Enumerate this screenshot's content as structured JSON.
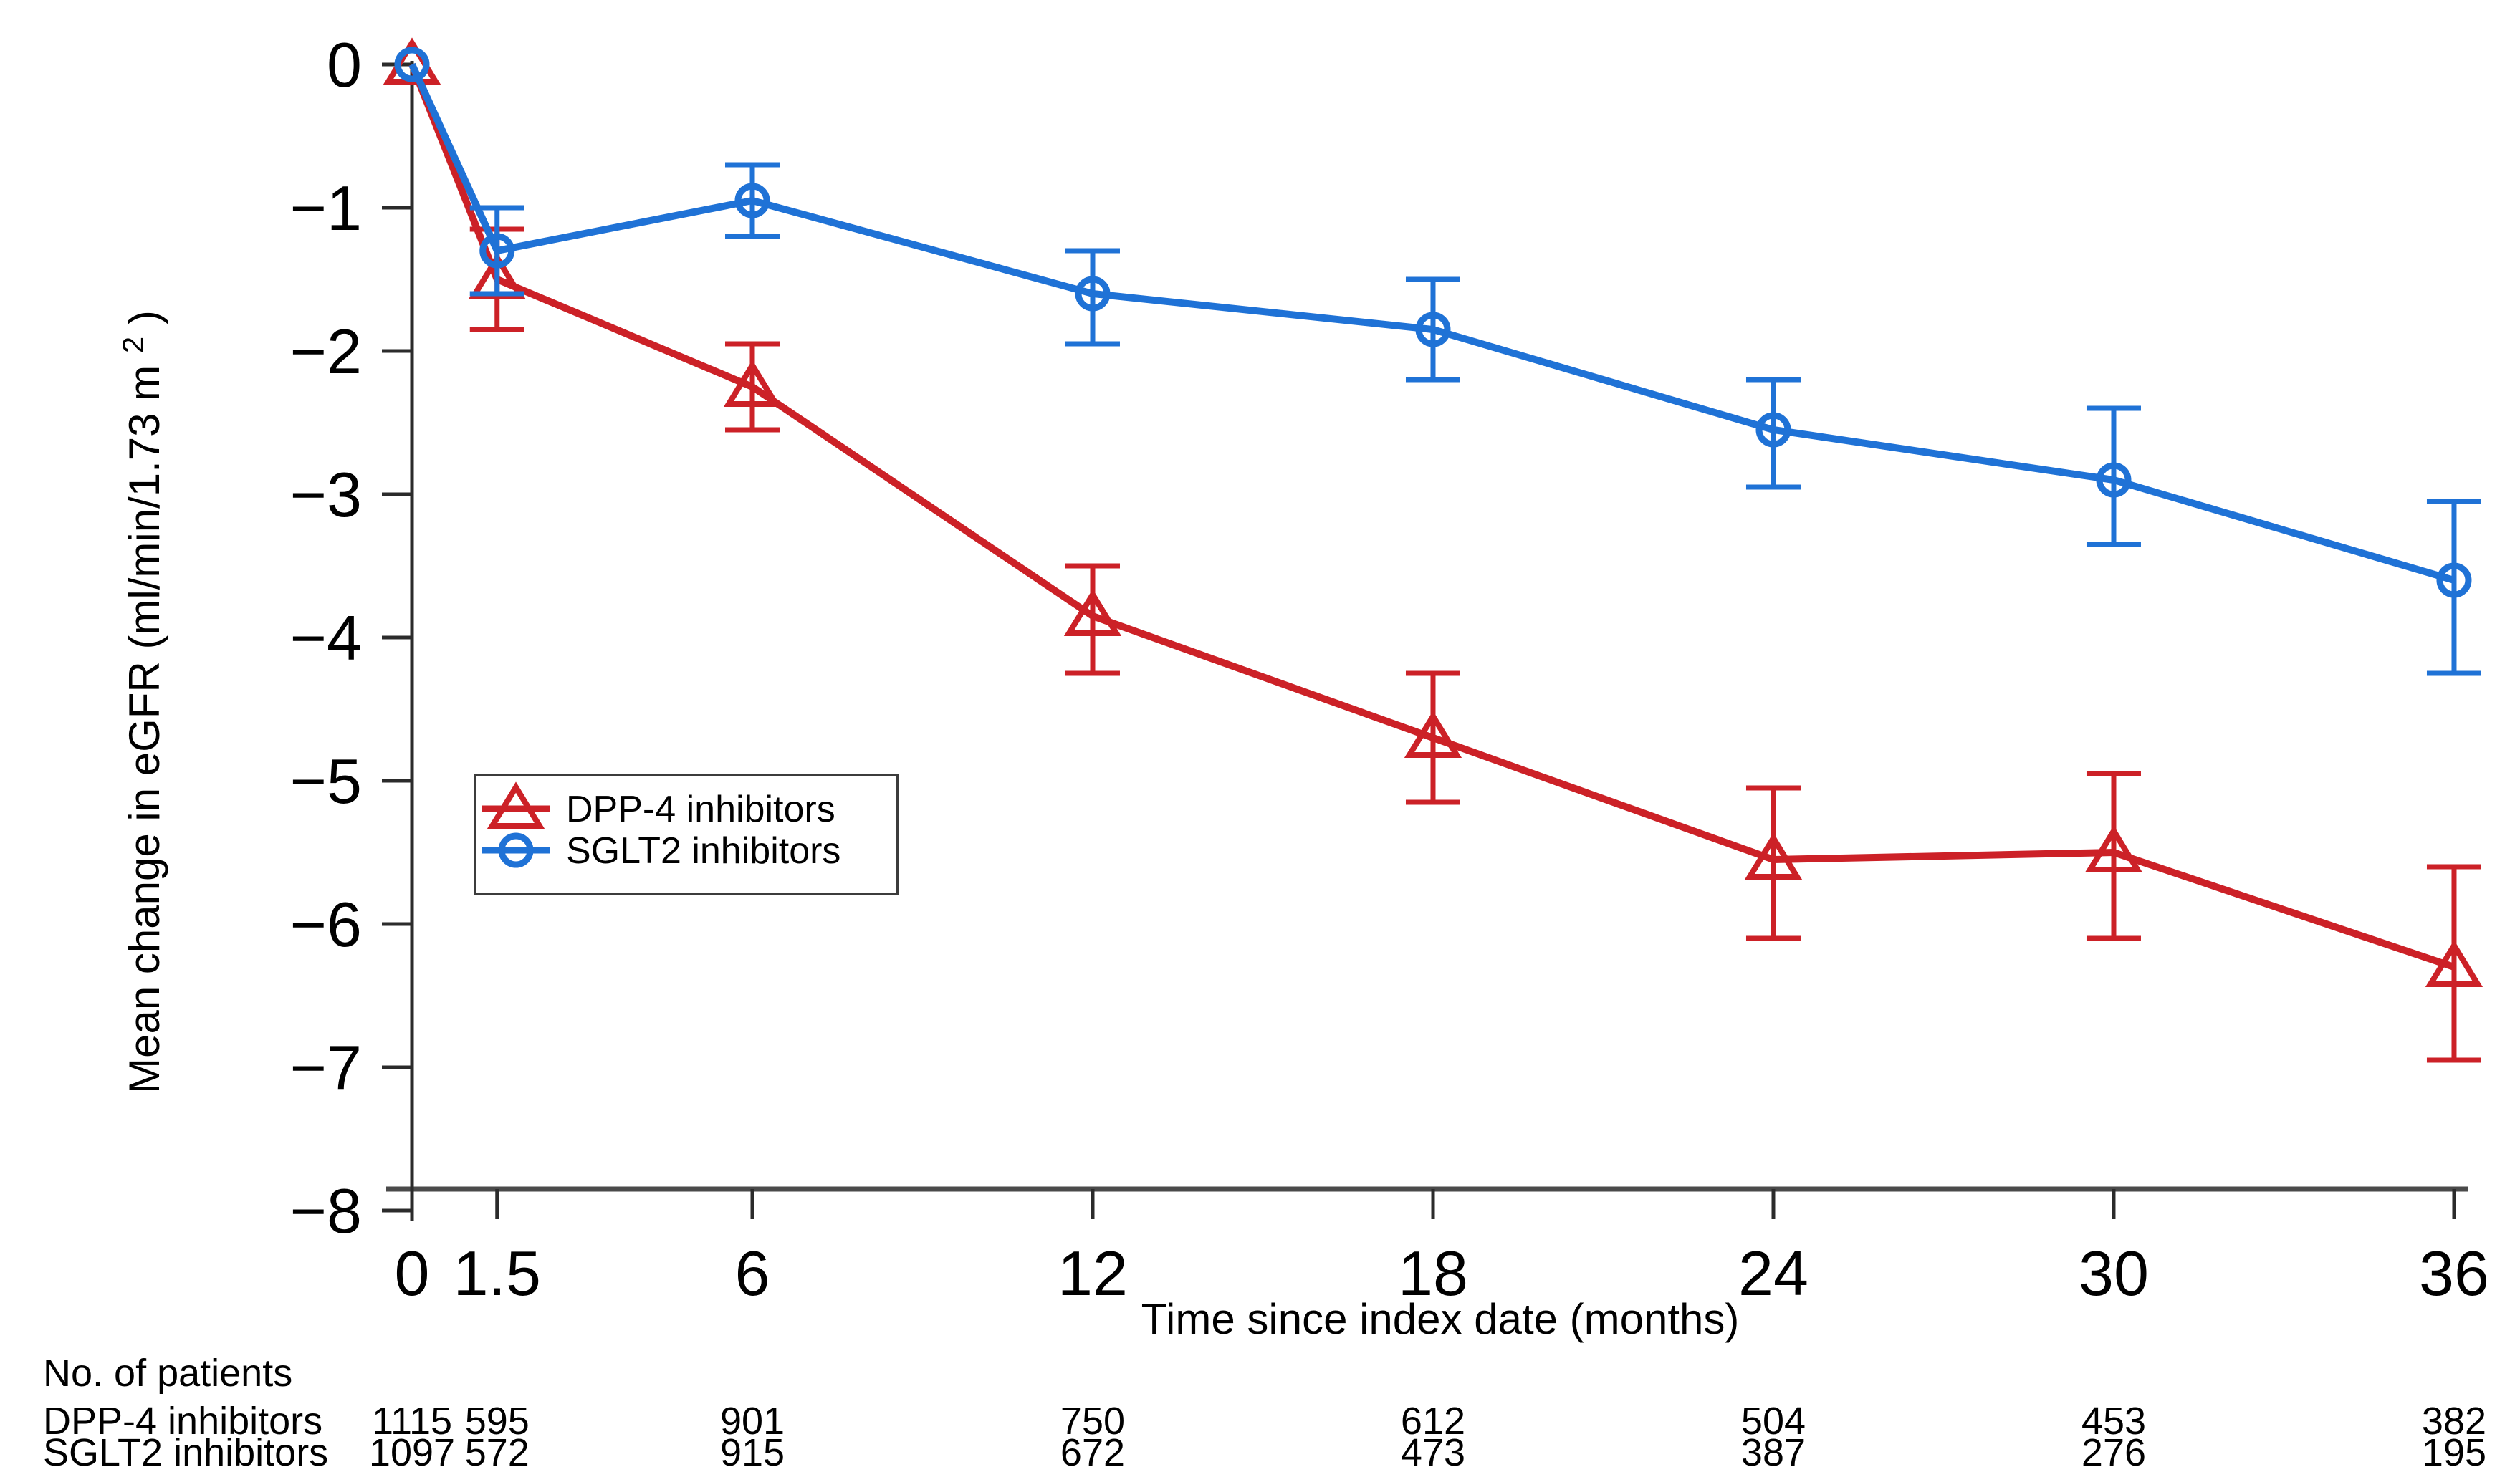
{
  "chart_data": {
    "type": "line",
    "title": "",
    "xlabel": "Time since index date (months)",
    "ylabel": "Mean change in eGFR (ml/min/1.73 m2)",
    "x": [
      0,
      1.5,
      6,
      12,
      18,
      24,
      30,
      36
    ],
    "xlim": [
      0,
      36
    ],
    "ylim": [
      -8,
      0
    ],
    "grid": false,
    "legend_position": "inside-middle-left",
    "yticks": [
      0,
      -1,
      -2,
      -3,
      -4,
      -5,
      -6,
      -7,
      -8
    ],
    "ytick_labels": [
      "0",
      "−1",
      "−2",
      "−3",
      "−4",
      "−5",
      "−6",
      "−7",
      "−8"
    ],
    "xtick_labels": [
      "0",
      "1.5",
      "6",
      "12",
      "18",
      "24",
      "30",
      "36"
    ],
    "series": [
      {
        "name": "DPP-4 inhibitors",
        "color": "#cc2127",
        "marker": "triangle",
        "values": [
          0,
          -1.5,
          -2.25,
          -3.85,
          -4.7,
          -5.55,
          -5.5,
          -6.3
        ],
        "ci_upper": [
          null,
          -1.15,
          -1.95,
          -3.5,
          -4.25,
          -5.05,
          -4.95,
          -5.6
        ],
        "ci_lower": [
          null,
          -1.85,
          -2.55,
          -4.25,
          -5.15,
          -6.1,
          -6.1,
          -6.95
        ]
      },
      {
        "name": "SGLT2 inhibitors",
        "color": "#1f72d6",
        "marker": "circle",
        "values": [
          0,
          -1.3,
          -0.95,
          -1.6,
          -1.85,
          -2.55,
          -2.9,
          -3.6
        ],
        "ci_upper": [
          null,
          -1.0,
          -0.7,
          -1.3,
          -1.5,
          -2.2,
          -2.4,
          -3.05
        ],
        "ci_lower": [
          null,
          -1.6,
          -1.2,
          -1.95,
          -2.2,
          -2.95,
          -3.35,
          -4.25
        ]
      }
    ]
  },
  "ylabel_parts": {
    "pre": "Mean change in eGFR (ml/min/1.73 m",
    "sup": "2",
    "post": ")"
  },
  "patients_table": {
    "header": "No. of patients",
    "rows": [
      {
        "label": "DPP-4 inhibitors",
        "counts": [
          "1115",
          "595",
          "901",
          "750",
          "612",
          "504",
          "453",
          "382"
        ]
      },
      {
        "label": "SGLT2 inhibitors",
        "counts": [
          "1097",
          "572",
          "915",
          "672",
          "473",
          "387",
          "276",
          "195"
        ]
      }
    ]
  },
  "colors": {
    "axis": "#2b2b2b",
    "x_axis_line": "#4a4a4a",
    "text": "#000000"
  }
}
